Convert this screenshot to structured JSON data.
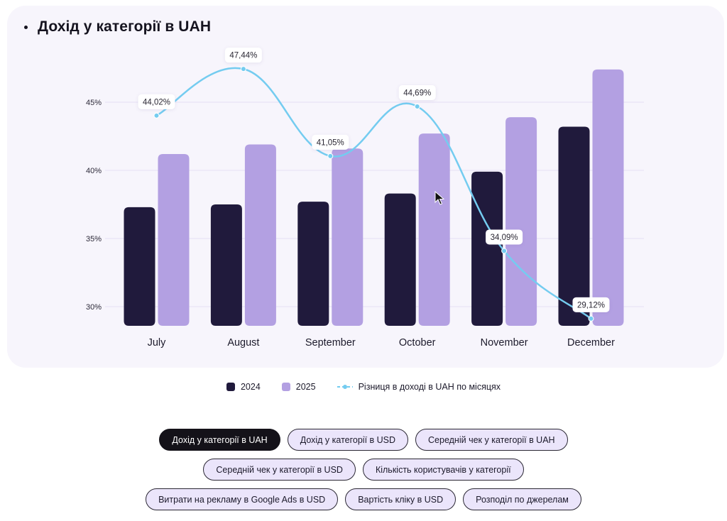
{
  "card": {
    "title": "Дохід у категорії в UAH"
  },
  "colors": {
    "s2024": "#201a3c",
    "s2025": "#b3a0e2",
    "line": "#74ccf0",
    "grid": "#e6e0f5"
  },
  "chart_data": {
    "type": "bar",
    "title": "Дохід у категорії в UAH",
    "xlabel": "",
    "ylabel": "",
    "categories": [
      "July",
      "August",
      "September",
      "October",
      "November",
      "December"
    ],
    "ylim": [
      28.6,
      47.5
    ],
    "yticks": [
      30,
      35,
      40,
      45
    ],
    "ytick_labels": [
      "30%",
      "35%",
      "40%",
      "45%"
    ],
    "grid": true,
    "series": [
      {
        "name": "2024",
        "type": "bar",
        "values": [
          37.3,
          37.5,
          37.7,
          38.3,
          39.9,
          43.2
        ]
      },
      {
        "name": "2025",
        "type": "bar",
        "values": [
          41.2,
          41.9,
          41.6,
          42.7,
          43.9,
          47.4
        ]
      },
      {
        "name": "Різниця в доході в UAH по місяцях",
        "type": "line",
        "values": [
          44.02,
          47.44,
          41.05,
          44.69,
          34.09,
          29.12
        ],
        "labels": [
          "44,02%",
          "47,44%",
          "41,05%",
          "44,69%",
          "34,09%",
          "29,12%"
        ]
      }
    ],
    "legend": "bottom-center"
  },
  "legend": [
    {
      "label": "2024"
    },
    {
      "label": "2025"
    },
    {
      "label": "Різниця в доході в UAH по місяцях"
    }
  ],
  "buttons": {
    "rows": [
      [
        {
          "label": "Дохід у категорії в UAH",
          "active": true
        },
        {
          "label": "Дохід у категорії в USD"
        },
        {
          "label": "Середній чек у категорії в UAH"
        }
      ],
      [
        {
          "label": "Середній чек у категорії в USD"
        },
        {
          "label": "Кількість користувачів у категорії"
        }
      ],
      [
        {
          "label": "Витрати на рекламу в Google Ads в USD"
        },
        {
          "label": "Вартість кліку в USD"
        },
        {
          "label": "Розподіл по джерелам"
        }
      ]
    ]
  }
}
